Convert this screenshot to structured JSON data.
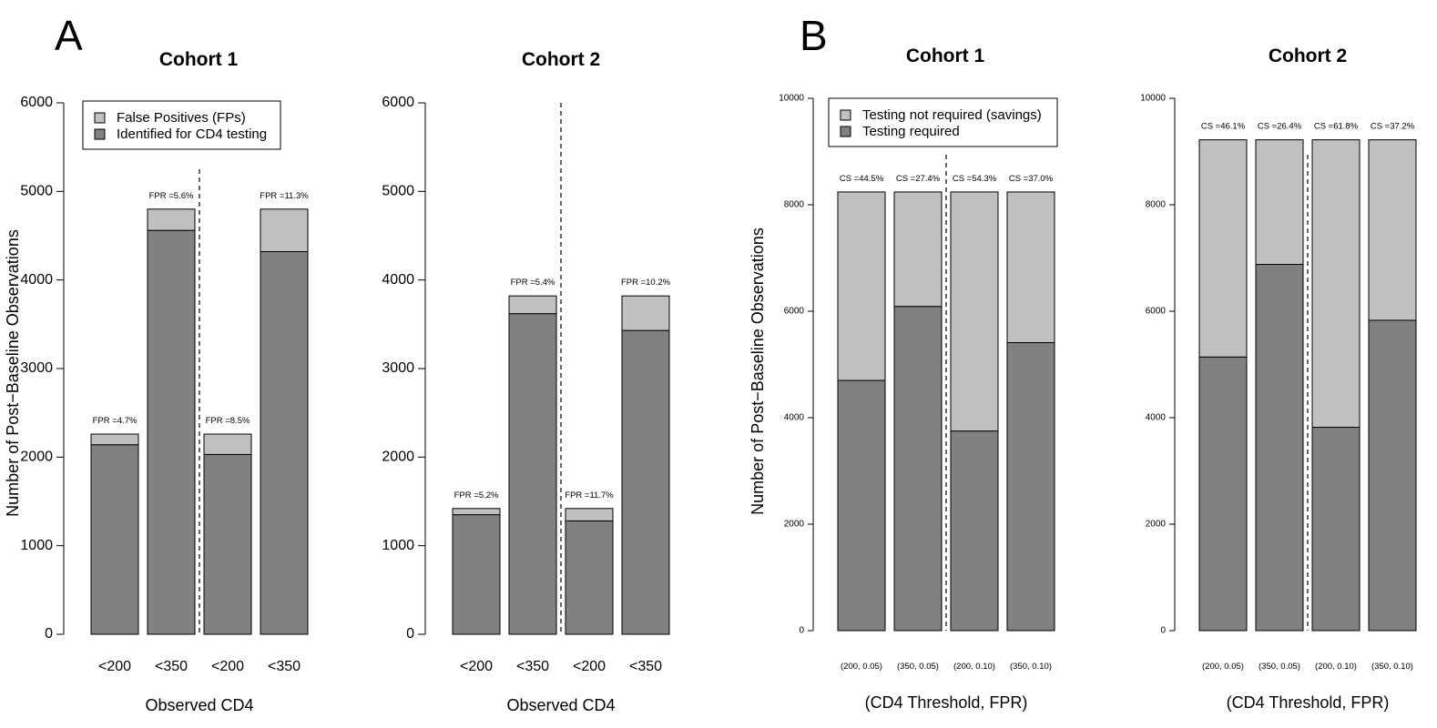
{
  "figure": {
    "panel_a_letter": "A",
    "panel_b_letter": "B"
  },
  "colors": {
    "dark": "#808080",
    "light": "#c0c0c0",
    "stroke": "#000000"
  },
  "chart_data": [
    {
      "type": "bar",
      "stacked": true,
      "panel": "A",
      "title": "Cohort 1",
      "xlabel": "Observed CD4",
      "ylabel": "Number of Post−Baseline Observations",
      "ylim": [
        0,
        6000
      ],
      "yticks": [
        0,
        1000,
        2000,
        3000,
        4000,
        5000,
        6000
      ],
      "categories": [
        "<200",
        "<350",
        "<200",
        "<350"
      ],
      "divider_after": 2,
      "legend": {
        "placement": "top-left"
      },
      "series": [
        {
          "name": "Identified for CD4 testing",
          "color": "#808080",
          "values": [
            2140,
            4560,
            2030,
            4320
          ]
        },
        {
          "name": "False Positives (FPs)",
          "color": "#c0c0c0",
          "values": [
            120,
            240,
            230,
            480
          ]
        }
      ],
      "annotations": [
        "FPR =4.7%",
        "FPR =5.6%",
        "FPR =8.5%",
        "FPR =11.3%"
      ]
    },
    {
      "type": "bar",
      "stacked": true,
      "panel": "A",
      "title": "Cohort 2",
      "xlabel": "Observed CD4",
      "ylabel": "",
      "ylim": [
        0,
        6000
      ],
      "yticks": [
        0,
        1000,
        2000,
        3000,
        4000,
        5000,
        6000
      ],
      "categories": [
        "<200",
        "<350",
        "<200",
        "<350"
      ],
      "divider_after": 2,
      "series": [
        {
          "name": "Identified for CD4 testing",
          "color": "#808080",
          "values": [
            1350,
            3620,
            1280,
            3430
          ]
        },
        {
          "name": "False Positives (FPs)",
          "color": "#c0c0c0",
          "values": [
            70,
            200,
            140,
            390
          ]
        }
      ],
      "annotations": [
        "FPR =5.2%",
        "FPR =5.4%",
        "FPR =11.7%",
        "FPR =10.2%"
      ]
    },
    {
      "type": "bar",
      "stacked": true,
      "panel": "B",
      "title": "Cohort 1",
      "xlabel": "(CD4 Threshold, FPR)",
      "ylabel": "Number of Post−Baseline Observations",
      "ylim": [
        0,
        10000
      ],
      "yticks": [
        0,
        2000,
        4000,
        6000,
        8000,
        10000
      ],
      "categories": [
        "(200, 0.05)",
        "(350, 0.05)",
        "(200, 0.10)",
        "(350, 0.10)"
      ],
      "divider_after": 2,
      "legend": {
        "placement": "top-left"
      },
      "series": [
        {
          "name": "Testing required",
          "color": "#808080",
          "values": [
            4700,
            6090,
            3750,
            5410
          ]
        },
        {
          "name": "Testing not required (savings)",
          "color": "#c0c0c0",
          "values": [
            3540,
            2150,
            4490,
            2830
          ]
        }
      ],
      "annotations": [
        "CS =44.5%",
        "CS =27.4%",
        "CS =54.3%",
        "CS =37.0%"
      ]
    },
    {
      "type": "bar",
      "stacked": true,
      "panel": "B",
      "title": "Cohort 2",
      "xlabel": "(CD4 Threshold, FPR)",
      "ylabel": "",
      "ylim": [
        0,
        10000
      ],
      "yticks": [
        0,
        2000,
        4000,
        6000,
        8000,
        10000
      ],
      "categories": [
        "(200, 0.05)",
        "(350, 0.05)",
        "(200, 0.10)",
        "(350, 0.10)"
      ],
      "divider_after": 2,
      "series": [
        {
          "name": "Testing required",
          "color": "#808080",
          "values": [
            5140,
            6880,
            3820,
            5830
          ]
        },
        {
          "name": "Testing not required (savings)",
          "color": "#c0c0c0",
          "values": [
            4080,
            2340,
            5400,
            3390
          ]
        }
      ],
      "annotations": [
        "CS =46.1%",
        "CS =26.4%",
        "CS =61.8%",
        "CS =37.2%"
      ]
    }
  ]
}
